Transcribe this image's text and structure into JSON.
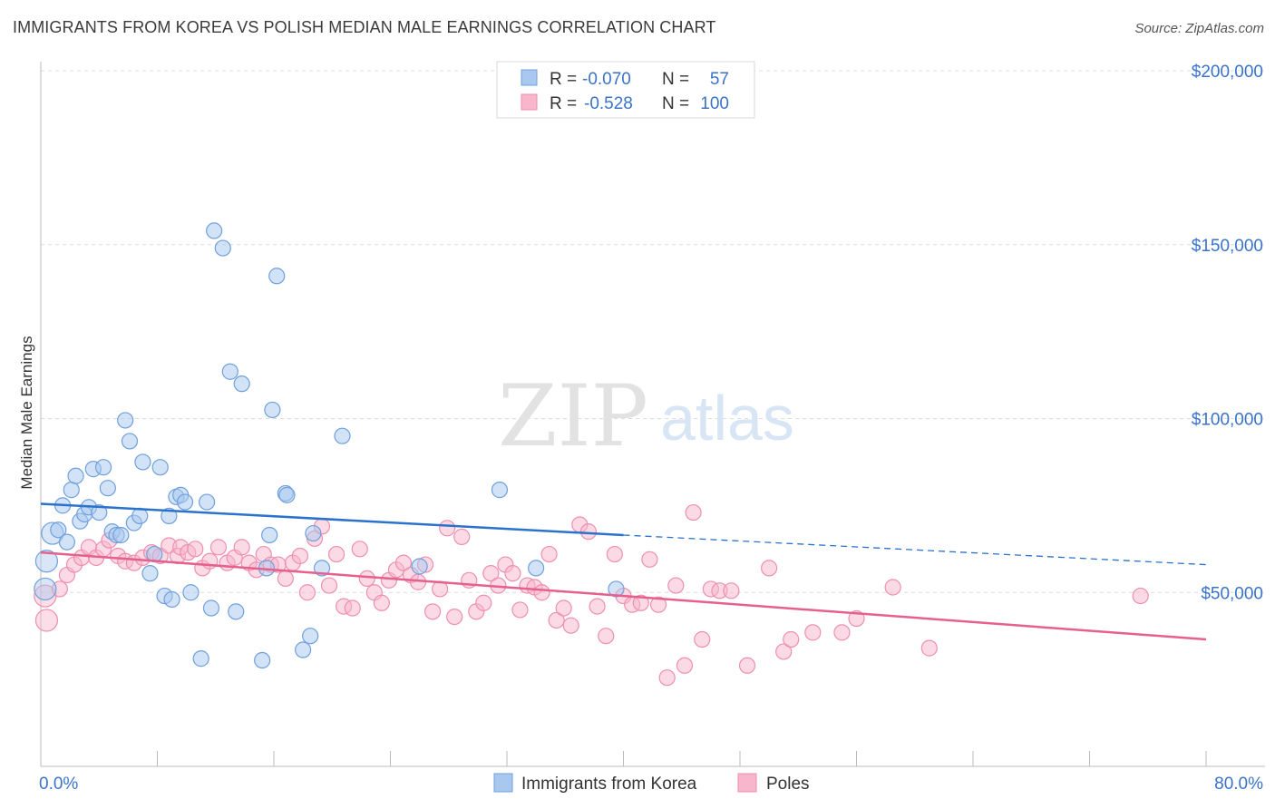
{
  "header": {
    "title": "IMMIGRANTS FROM KOREA VS POLISH MEDIAN MALE EARNINGS CORRELATION CHART",
    "source": "Source: ZipAtlas.com"
  },
  "watermark": {
    "part1": "ZIP",
    "part2": "atlas"
  },
  "colors": {
    "korea_fill": "#a8c8ef",
    "korea_stroke": "#6fa0dc",
    "korea_line": "#2a72cc",
    "poles_fill": "#f7b6cb",
    "poles_stroke": "#ee8fae",
    "poles_line": "#e5608f",
    "value_text": "#3a73c8",
    "grid": "#dcdcdc"
  },
  "chart_data": {
    "type": "scatter",
    "xlabel": "",
    "ylabel": "Median Male Earnings",
    "xlim": [
      0,
      80
    ],
    "ylim": [
      0,
      200000
    ],
    "x_tick_labels": [
      "0.0%",
      "80.0%"
    ],
    "y_tick_labels": [
      "$200,000",
      "$150,000",
      "$100,000",
      "$50,000"
    ],
    "y_ticks": [
      200000,
      150000,
      100000,
      50000
    ],
    "grid": true,
    "legend_position": "top-center",
    "stats": [
      {
        "r_label": "R = ",
        "r_value": "-0.070",
        "n_label": "N = ",
        "n_value": "57"
      },
      {
        "r_label": "R = ",
        "r_value": "-0.528",
        "n_label": "N = ",
        "n_value": "100"
      }
    ],
    "series": [
      {
        "name": "Immigrants from Korea",
        "trend": {
          "x": [
            0,
            40
          ],
          "y": [
            75500,
            66500
          ],
          "dashed_to": [
            80,
            58000
          ]
        },
        "points": [
          [
            0.4,
            59000
          ],
          [
            0.3,
            51000
          ],
          [
            0.8,
            67000
          ],
          [
            1.2,
            68000
          ],
          [
            1.5,
            75000
          ],
          [
            1.8,
            64500
          ],
          [
            2.1,
            79500
          ],
          [
            2.4,
            83500
          ],
          [
            2.7,
            70500
          ],
          [
            3.0,
            72500
          ],
          [
            3.3,
            74500
          ],
          [
            3.6,
            85500
          ],
          [
            4.0,
            73000
          ],
          [
            4.3,
            86000
          ],
          [
            4.6,
            80000
          ],
          [
            4.9,
            67500
          ],
          [
            5.2,
            66500
          ],
          [
            5.5,
            66500
          ],
          [
            5.8,
            99500
          ],
          [
            6.1,
            93500
          ],
          [
            6.4,
            70000
          ],
          [
            6.8,
            72000
          ],
          [
            7.0,
            87500
          ],
          [
            7.5,
            55500
          ],
          [
            7.8,
            61000
          ],
          [
            8.2,
            86000
          ],
          [
            8.5,
            49000
          ],
          [
            8.8,
            72000
          ],
          [
            9.0,
            48000
          ],
          [
            9.3,
            77500
          ],
          [
            9.6,
            78000
          ],
          [
            9.9,
            76000
          ],
          [
            10.3,
            50000
          ],
          [
            11.0,
            31000
          ],
          [
            11.4,
            76000
          ],
          [
            11.7,
            45500
          ],
          [
            11.9,
            154000
          ],
          [
            12.5,
            149000
          ],
          [
            13.0,
            113500
          ],
          [
            13.4,
            44500
          ],
          [
            13.8,
            110000
          ],
          [
            15.2,
            30500
          ],
          [
            15.5,
            57000
          ],
          [
            15.7,
            66500
          ],
          [
            15.9,
            102500
          ],
          [
            16.2,
            141000
          ],
          [
            16.8,
            78500
          ],
          [
            16.9,
            78000
          ],
          [
            18.0,
            33500
          ],
          [
            18.5,
            37500
          ],
          [
            18.7,
            67000
          ],
          [
            19.3,
            57000
          ],
          [
            20.7,
            95000
          ],
          [
            26.0,
            57500
          ],
          [
            31.5,
            79500
          ],
          [
            34.0,
            57000
          ],
          [
            39.5,
            51000
          ]
        ]
      },
      {
        "name": "Poles",
        "trend": {
          "x": [
            0,
            80
          ],
          "y": [
            61500,
            36500
          ]
        },
        "points": [
          [
            0.3,
            49000
          ],
          [
            0.4,
            42000
          ],
          [
            1.3,
            51000
          ],
          [
            1.8,
            55000
          ],
          [
            2.3,
            58000
          ],
          [
            2.8,
            60000
          ],
          [
            3.3,
            63000
          ],
          [
            3.8,
            60000
          ],
          [
            4.3,
            62500
          ],
          [
            4.7,
            65000
          ],
          [
            5.3,
            60500
          ],
          [
            5.8,
            59000
          ],
          [
            6.4,
            58500
          ],
          [
            7.0,
            60000
          ],
          [
            7.6,
            61500
          ],
          [
            8.2,
            60500
          ],
          [
            8.8,
            63500
          ],
          [
            9.4,
            60500
          ],
          [
            9.6,
            63000
          ],
          [
            10.1,
            61500
          ],
          [
            10.6,
            62500
          ],
          [
            11.1,
            57000
          ],
          [
            11.6,
            59000
          ],
          [
            12.2,
            63000
          ],
          [
            12.8,
            58500
          ],
          [
            13.3,
            60000
          ],
          [
            13.8,
            63000
          ],
          [
            14.3,
            58500
          ],
          [
            14.8,
            56500
          ],
          [
            15.3,
            61000
          ],
          [
            15.8,
            58000
          ],
          [
            16.3,
            58000
          ],
          [
            16.8,
            54000
          ],
          [
            17.3,
            58500
          ],
          [
            17.8,
            60500
          ],
          [
            18.3,
            50000
          ],
          [
            18.8,
            65500
          ],
          [
            19.3,
            69000
          ],
          [
            19.8,
            52000
          ],
          [
            20.3,
            61000
          ],
          [
            20.8,
            46000
          ],
          [
            21.4,
            45500
          ],
          [
            21.9,
            62500
          ],
          [
            22.4,
            54000
          ],
          [
            22.9,
            50000
          ],
          [
            23.4,
            47000
          ],
          [
            23.9,
            53500
          ],
          [
            24.4,
            56500
          ],
          [
            24.9,
            58500
          ],
          [
            25.4,
            55000
          ],
          [
            25.9,
            53000
          ],
          [
            26.4,
            58000
          ],
          [
            26.9,
            44500
          ],
          [
            27.4,
            51000
          ],
          [
            27.9,
            68500
          ],
          [
            28.4,
            43000
          ],
          [
            28.9,
            66000
          ],
          [
            29.4,
            53500
          ],
          [
            29.9,
            44500
          ],
          [
            30.4,
            47000
          ],
          [
            30.9,
            55500
          ],
          [
            31.4,
            52000
          ],
          [
            31.9,
            58000
          ],
          [
            32.4,
            55500
          ],
          [
            32.9,
            45000
          ],
          [
            33.4,
            52000
          ],
          [
            33.9,
            51500
          ],
          [
            34.4,
            50000
          ],
          [
            34.9,
            61000
          ],
          [
            35.4,
            42000
          ],
          [
            35.9,
            45500
          ],
          [
            36.4,
            40500
          ],
          [
            37.0,
            69500
          ],
          [
            37.6,
            67500
          ],
          [
            38.2,
            46000
          ],
          [
            38.8,
            37500
          ],
          [
            39.4,
            61000
          ],
          [
            40.0,
            49000
          ],
          [
            40.6,
            46500
          ],
          [
            41.2,
            47000
          ],
          [
            41.8,
            59500
          ],
          [
            42.4,
            46500
          ],
          [
            43.0,
            25500
          ],
          [
            43.6,
            52000
          ],
          [
            44.2,
            29000
          ],
          [
            44.8,
            73000
          ],
          [
            45.4,
            36500
          ],
          [
            46.0,
            51000
          ],
          [
            46.6,
            50500
          ],
          [
            47.4,
            50500
          ],
          [
            48.5,
            29000
          ],
          [
            50.0,
            57000
          ],
          [
            51.0,
            33000
          ],
          [
            51.5,
            36500
          ],
          [
            53.0,
            38500
          ],
          [
            55.0,
            38500
          ],
          [
            56.0,
            42500
          ],
          [
            58.5,
            51500
          ],
          [
            61.0,
            34000
          ],
          [
            75.5,
            49000
          ]
        ]
      }
    ]
  }
}
